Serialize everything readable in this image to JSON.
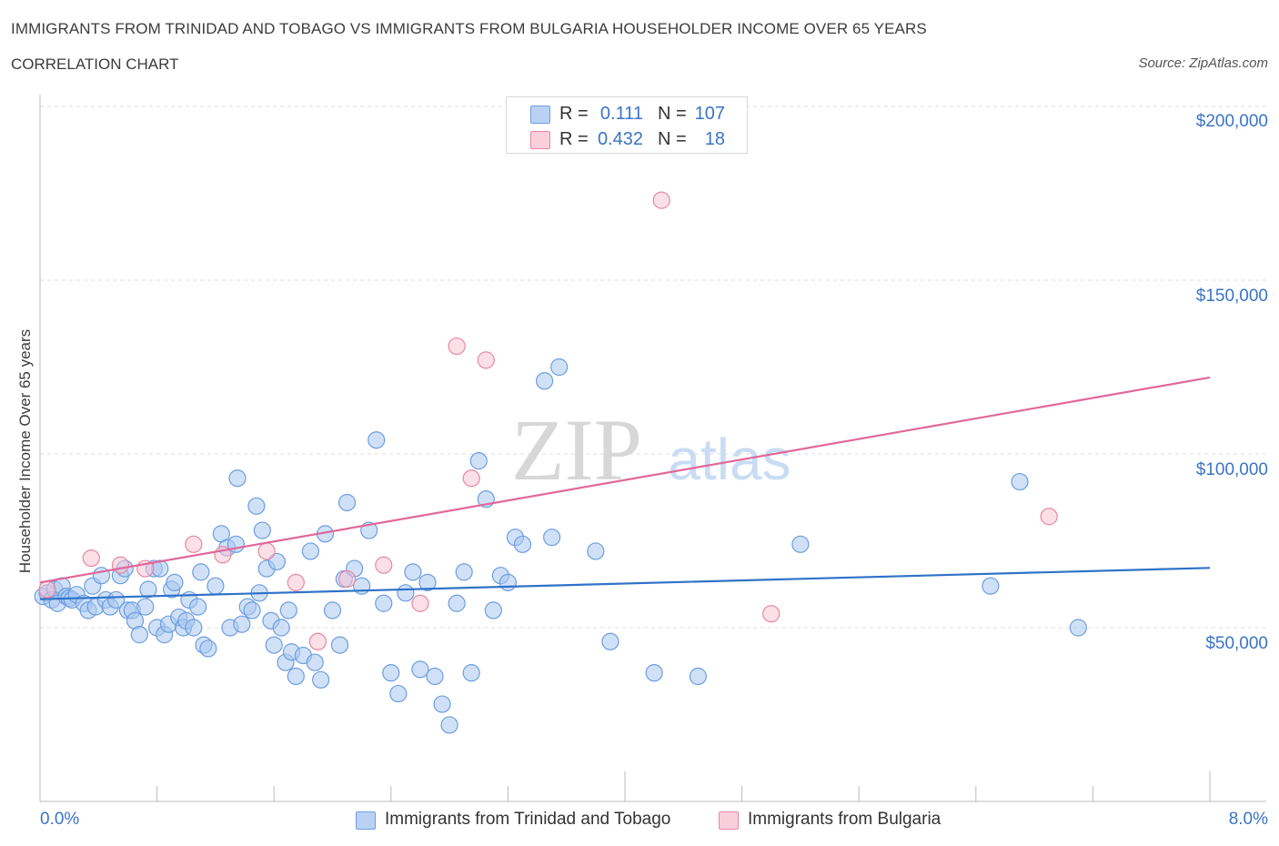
{
  "title": "IMMIGRANTS FROM TRINIDAD AND TOBAGO VS IMMIGRANTS FROM BULGARIA HOUSEHOLDER INCOME OVER 65 YEARS",
  "subtitle": "CORRELATION CHART",
  "source": "Source: ZipAtlas.com",
  "watermark": {
    "zip": "ZIP",
    "atlas": "atlas"
  },
  "legend": {
    "rows": [
      {
        "r_label": "R =",
        "r_value": "0.111",
        "n_label": "N =",
        "n_value": "107"
      },
      {
        "r_label": "R =",
        "r_value": "0.432",
        "n_label": "N =",
        "n_value": "18"
      }
    ]
  },
  "colors": {
    "series1_fill": "#a9c8f0",
    "series1_stroke": "#6d9de0",
    "series1_line": "#2f72c9",
    "series2_fill": "#f7c1d1",
    "series2_stroke": "#e8879f",
    "series2_line": "#e0689a",
    "tick_label": "#3a74c6",
    "grid": "#dddddd"
  },
  "chart_data": {
    "type": "scatter",
    "title": "IMMIGRANTS FROM TRINIDAD AND TOBAGO VS IMMIGRANTS FROM BULGARIA HOUSEHOLDER INCOME OVER 65 YEARS",
    "xlabel": "",
    "ylabel": "Householder Income Over 65 years",
    "xlim": [
      0,
      8
    ],
    "ylim": [
      0,
      210000
    ],
    "x_tick_labels": {
      "left": "0.0%",
      "right": "8.0%"
    },
    "y_ticks": [
      {
        "value": 50000,
        "label": "$50,000"
      },
      {
        "value": 100000,
        "label": "$100,000"
      },
      {
        "value": 150000,
        "label": "$150,000"
      },
      {
        "value": 200000,
        "label": "$200,000"
      }
    ],
    "series": [
      {
        "name": "Immigrants from Trinidad and Tobago",
        "trend": {
          "x": [
            0,
            8
          ],
          "y": [
            58200,
            67200
          ]
        },
        "points": [
          [
            0.02,
            59000
          ],
          [
            0.05,
            60000
          ],
          [
            0.08,
            58000
          ],
          [
            0.1,
            61000
          ],
          [
            0.12,
            57000
          ],
          [
            0.15,
            62000
          ],
          [
            0.18,
            59000
          ],
          [
            0.2,
            58500
          ],
          [
            0.22,
            58000
          ],
          [
            0.25,
            59500
          ],
          [
            0.3,
            57000
          ],
          [
            0.33,
            55000
          ],
          [
            0.36,
            62000
          ],
          [
            0.38,
            56000
          ],
          [
            0.42,
            65000
          ],
          [
            0.45,
            58000
          ],
          [
            0.48,
            56000
          ],
          [
            0.52,
            58000
          ],
          [
            0.55,
            65000
          ],
          [
            0.58,
            67000
          ],
          [
            0.6,
            55000
          ],
          [
            0.63,
            55000
          ],
          [
            0.65,
            52000
          ],
          [
            0.68,
            48000
          ],
          [
            0.72,
            56000
          ],
          [
            0.74,
            61000
          ],
          [
            0.78,
            67000
          ],
          [
            0.8,
            50000
          ],
          [
            0.82,
            67000
          ],
          [
            0.85,
            48000
          ],
          [
            0.88,
            51000
          ],
          [
            0.9,
            61000
          ],
          [
            0.92,
            63000
          ],
          [
            0.95,
            53000
          ],
          [
            0.98,
            50000
          ],
          [
            1.0,
            52000
          ],
          [
            1.02,
            58000
          ],
          [
            1.05,
            50000
          ],
          [
            1.08,
            56000
          ],
          [
            1.1,
            66000
          ],
          [
            1.12,
            45000
          ],
          [
            1.15,
            44000
          ],
          [
            1.2,
            62000
          ],
          [
            1.24,
            77000
          ],
          [
            1.28,
            73000
          ],
          [
            1.3,
            50000
          ],
          [
            1.34,
            74000
          ],
          [
            1.38,
            51000
          ],
          [
            1.42,
            56000
          ],
          [
            1.45,
            55000
          ],
          [
            1.48,
            85000
          ],
          [
            1.5,
            60000
          ],
          [
            1.52,
            78000
          ],
          [
            1.55,
            67000
          ],
          [
            1.58,
            52000
          ],
          [
            1.6,
            45000
          ],
          [
            1.62,
            69000
          ],
          [
            1.65,
            50000
          ],
          [
            1.68,
            40000
          ],
          [
            1.7,
            55000
          ],
          [
            1.72,
            43000
          ],
          [
            1.75,
            36000
          ],
          [
            1.8,
            42000
          ],
          [
            1.85,
            72000
          ],
          [
            1.88,
            40000
          ],
          [
            1.92,
            35000
          ],
          [
            1.95,
            77000
          ],
          [
            2.0,
            55000
          ],
          [
            2.05,
            45000
          ],
          [
            2.08,
            64000
          ],
          [
            2.1,
            86000
          ],
          [
            2.15,
            67000
          ],
          [
            2.2,
            62000
          ],
          [
            2.25,
            78000
          ],
          [
            2.3,
            104000
          ],
          [
            2.35,
            57000
          ],
          [
            2.4,
            37000
          ],
          [
            2.45,
            31000
          ],
          [
            2.5,
            60000
          ],
          [
            2.55,
            66000
          ],
          [
            2.6,
            38000
          ],
          [
            2.65,
            63000
          ],
          [
            2.7,
            36000
          ],
          [
            2.75,
            28000
          ],
          [
            2.8,
            22000
          ],
          [
            2.85,
            57000
          ],
          [
            2.9,
            66000
          ],
          [
            2.95,
            37000
          ],
          [
            3.0,
            98000
          ],
          [
            3.05,
            87000
          ],
          [
            3.1,
            55000
          ],
          [
            3.15,
            65000
          ],
          [
            3.2,
            63000
          ],
          [
            3.25,
            76000
          ],
          [
            3.3,
            74000
          ],
          [
            3.5,
            76000
          ],
          [
            3.8,
            72000
          ],
          [
            3.9,
            46000
          ],
          [
            4.2,
            37000
          ],
          [
            4.5,
            36000
          ],
          [
            5.2,
            74000
          ],
          [
            6.5,
            62000
          ],
          [
            1.35,
            93000
          ],
          [
            3.45,
            121000
          ],
          [
            3.55,
            125000
          ],
          [
            6.7,
            92000
          ],
          [
            7.1,
            50000
          ]
        ]
      },
      {
        "name": "Immigrants from Bulgaria",
        "trend": {
          "x": [
            0,
            8
          ],
          "y": [
            63000,
            122000
          ]
        },
        "points": [
          [
            0.05,
            61000
          ],
          [
            0.35,
            70000
          ],
          [
            0.55,
            68000
          ],
          [
            0.72,
            67000
          ],
          [
            1.05,
            74000
          ],
          [
            1.25,
            71000
          ],
          [
            1.55,
            72000
          ],
          [
            1.75,
            63000
          ],
          [
            1.9,
            46000
          ],
          [
            2.1,
            64000
          ],
          [
            2.35,
            68000
          ],
          [
            2.6,
            57000
          ],
          [
            2.85,
            131000
          ],
          [
            2.95,
            93000
          ],
          [
            3.05,
            127000
          ],
          [
            4.25,
            173000
          ],
          [
            5.0,
            54000
          ],
          [
            6.9,
            82000
          ]
        ]
      }
    ]
  },
  "bottom_legend": {
    "series1": "Immigrants from Trinidad and Tobago",
    "series2": "Immigrants from Bulgaria"
  }
}
